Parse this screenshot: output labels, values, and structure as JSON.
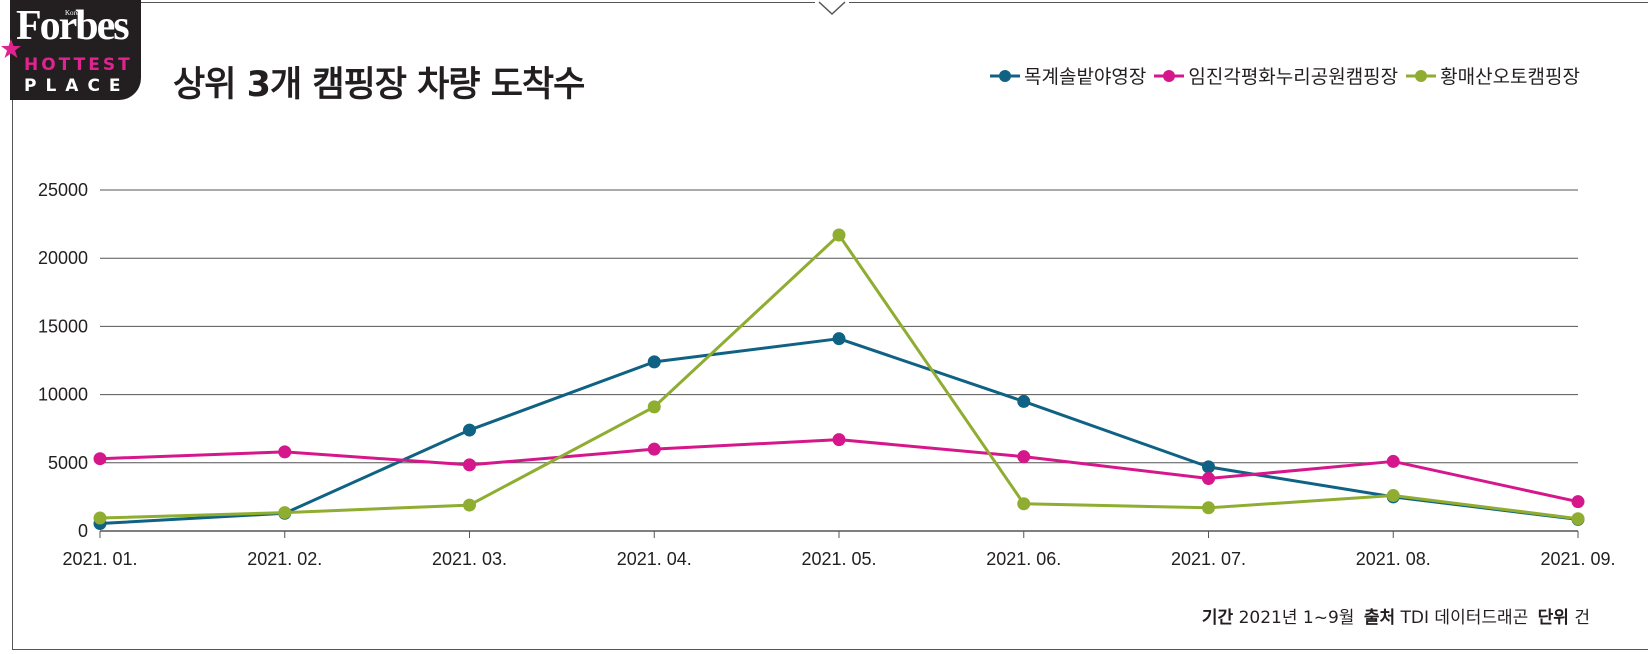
{
  "header": {
    "logo_brand": "Forbes",
    "logo_edition": "Korea",
    "logo_line1": "HOTTEST",
    "logo_line2": "PLACE",
    "title": "상위 3개 캠핑장 차량 도착수"
  },
  "colors": {
    "series1": "#0f6283",
    "series2": "#d6178b",
    "series3": "#8fad31",
    "grid": "#555555",
    "logo_bg": "#231f20",
    "logo_accent": "#e0248f"
  },
  "chart_data": {
    "type": "line",
    "title": "상위 3개 캠핑장 차량 도착수",
    "xlabel": "",
    "ylabel": "",
    "x": [
      "2021. 01.",
      "2021. 02.",
      "2021. 03.",
      "2021. 04.",
      "2021. 05.",
      "2021. 06.",
      "2021. 07.",
      "2021. 08.",
      "2021. 09."
    ],
    "yticks": [
      0,
      5000,
      10000,
      15000,
      20000,
      25000
    ],
    "ylim": [
      0,
      25000
    ],
    "grid": "horizontal",
    "legend_position": "top-right",
    "series": [
      {
        "name": "목계솔밭야영장",
        "color": "#0f6283",
        "values": [
          550,
          1300,
          7400,
          12400,
          14100,
          9500,
          4700,
          2500,
          850
        ]
      },
      {
        "name": "임진각평화누리공원캠핑장",
        "color": "#d6178b",
        "values": [
          5300,
          5800,
          4850,
          6000,
          6700,
          5450,
          3850,
          5100,
          2150
        ]
      },
      {
        "name": "황매산오토캠핑장",
        "color": "#8fad31",
        "values": [
          950,
          1350,
          1900,
          9100,
          21700,
          2000,
          1700,
          2600,
          900
        ]
      }
    ]
  },
  "footer": {
    "period_label": "기간",
    "period_value": "2021년 1~9월",
    "source_label": "출처",
    "source_value": "TDI 데이터드래곤",
    "unit_label": "단위",
    "unit_value": "건"
  }
}
